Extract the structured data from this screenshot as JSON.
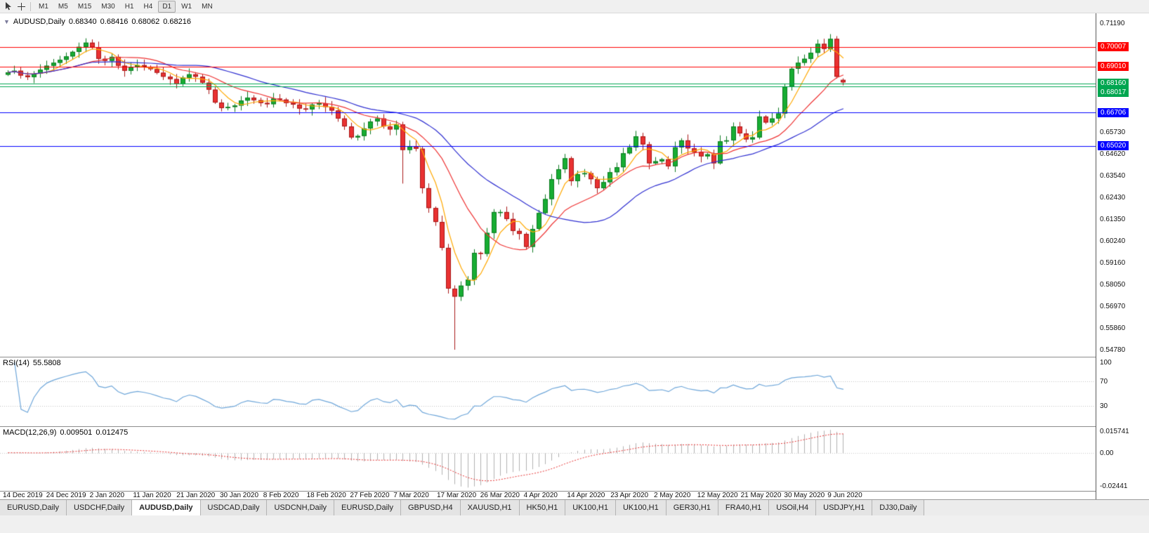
{
  "toolbar": {
    "timeframes": [
      "M1",
      "M5",
      "M15",
      "M30",
      "H1",
      "H4",
      "D1",
      "W1",
      "MN"
    ],
    "active_timeframe": "D1"
  },
  "chart": {
    "symbol_title": "AUDUSD,Daily",
    "ohlc": {
      "open": "0.68340",
      "high": "0.68416",
      "low": "0.68062",
      "close": "0.68216"
    },
    "price_axis": {
      "ticks": [
        {
          "label": "0.71190",
          "price": 0.7119
        },
        {
          "label": "0.65730",
          "price": 0.6573
        },
        {
          "label": "0.64620",
          "price": 0.6462
        },
        {
          "label": "0.63540",
          "price": 0.6354
        },
        {
          "label": "0.62430",
          "price": 0.6243
        },
        {
          "label": "0.61350",
          "price": 0.6135
        },
        {
          "label": "0.60240",
          "price": 0.6024
        },
        {
          "label": "0.59160",
          "price": 0.5916
        },
        {
          "label": "0.58050",
          "price": 0.5805
        },
        {
          "label": "0.56970",
          "price": 0.5697
        },
        {
          "label": "0.55860",
          "price": 0.5586
        },
        {
          "label": "0.54780",
          "price": 0.5478
        }
      ]
    },
    "date_axis": [
      "14 Dec 2019",
      "24 Dec 2019",
      "2 Jan 2020",
      "11 Jan 2020",
      "21 Jan 2020",
      "30 Jan 2020",
      "8 Feb 2020",
      "18 Feb 2020",
      "27 Feb 2020",
      "7 Mar 2020",
      "17 Mar 2020",
      "26 Mar 2020",
      "4 Apr 2020",
      "14 Apr 2020",
      "23 Apr 2020",
      "2 May 2020",
      "12 May 2020",
      "21 May 2020",
      "30 May 2020",
      "9 Jun 2020"
    ]
  },
  "rsi": {
    "name": "RSI(14)",
    "value": "55.5808",
    "period": 14,
    "axis": [
      {
        "label": "100",
        "value": 100
      },
      {
        "label": "70",
        "value": 70
      },
      {
        "label": "30",
        "value": 30
      }
    ],
    "levels": [
      70,
      30
    ]
  },
  "macd": {
    "name": "MACD(12,26,9)",
    "main": "0.009501",
    "signal": "0.012475",
    "params": [
      12,
      26,
      9
    ],
    "axis": [
      {
        "label": "0.015741",
        "value": 0.015741
      },
      {
        "label": "0.00",
        "value": 0.0
      },
      {
        "label": "-0.02441",
        "value": -0.02441
      }
    ]
  },
  "tabs": [
    {
      "label": "EURUSD,Daily",
      "active": false
    },
    {
      "label": "USDCHF,Daily",
      "active": false
    },
    {
      "label": "AUDUSD,Daily",
      "active": true
    },
    {
      "label": "USDCAD,Daily",
      "active": false
    },
    {
      "label": "USDCNH,Daily",
      "active": false
    },
    {
      "label": "EURUSD,Daily",
      "active": false
    },
    {
      "label": "GBPUSD,H4",
      "active": false
    },
    {
      "label": "XAUUSD,H1",
      "active": false
    },
    {
      "label": "HK50,H1",
      "active": false
    },
    {
      "label": "UK100,H1",
      "active": false
    },
    {
      "label": "UK100,H1",
      "active": false
    },
    {
      "label": "GER30,H1",
      "active": false
    },
    {
      "label": "FRA40,H1",
      "active": false
    },
    {
      "label": "USOil,H4",
      "active": false
    },
    {
      "label": "USDJPY,H1",
      "active": false
    },
    {
      "label": "DJ30,Daily",
      "active": false
    }
  ],
  "colors": {
    "candle_up": "#17ad33",
    "candle_up_border": "#0c7a20",
    "candle_down": "#e93232",
    "candle_down_border": "#a81717",
    "ma_fast": "#ffa800",
    "ma_mid": "#ee3333",
    "ma_slow": "#2f2fd0",
    "rsi_line": "#6ea6d9",
    "macd_hist": "#b0b0b0",
    "macd_signal": "#e53030",
    "line_red": "#ff0000",
    "line_green": "#00a650",
    "line_blue": "#0000ff"
  },
  "chart_data": {
    "type": "candlestick",
    "symbol": "AUDUSD",
    "timeframe": "Daily",
    "price_range": {
      "max": 0.7119,
      "min": 0.5478
    },
    "first_open": 0.686,
    "closes": [
      0.6872,
      0.688,
      0.6856,
      0.6848,
      0.6865,
      0.6885,
      0.6905,
      0.692,
      0.6935,
      0.6952,
      0.6975,
      0.7,
      0.7021,
      0.6998,
      0.694,
      0.693,
      0.695,
      0.6905,
      0.688,
      0.6898,
      0.6908,
      0.69,
      0.6888,
      0.687,
      0.685,
      0.6838,
      0.6812,
      0.6845,
      0.6862,
      0.685,
      0.682,
      0.6785,
      0.672,
      0.6692,
      0.6698,
      0.6705,
      0.673,
      0.6745,
      0.6732,
      0.6718,
      0.6712,
      0.674,
      0.6735,
      0.6718,
      0.671,
      0.669,
      0.6686,
      0.671,
      0.6716,
      0.6698,
      0.668,
      0.664,
      0.66,
      0.6545,
      0.6552,
      0.659,
      0.6625,
      0.664,
      0.66,
      0.6585,
      0.661,
      0.6482,
      0.65,
      0.6488,
      0.629,
      0.619,
      0.612,
      0.599,
      0.5785,
      0.5745,
      0.58,
      0.583,
      0.5965,
      0.596,
      0.6065,
      0.617,
      0.617,
      0.6135,
      0.6075,
      0.606,
      0.5995,
      0.6085,
      0.6165,
      0.6235,
      0.6335,
      0.6385,
      0.644,
      0.6325,
      0.636,
      0.6365,
      0.6335,
      0.629,
      0.632,
      0.637,
      0.6395,
      0.6465,
      0.6495,
      0.655,
      0.651,
      0.6415,
      0.6425,
      0.6435,
      0.64,
      0.6495,
      0.653,
      0.649,
      0.647,
      0.645,
      0.646,
      0.6415,
      0.6525,
      0.653,
      0.66,
      0.6565,
      0.6535,
      0.6545,
      0.665,
      0.662,
      0.664,
      0.6665,
      0.68,
      0.689,
      0.692,
      0.694,
      0.697,
      0.7015,
      0.699,
      0.704,
      0.685,
      0.68216
    ],
    "wick_overrides": [
      {
        "index": 61,
        "low": 0.6313
      },
      {
        "index": 69,
        "low": 0.5478
      },
      {
        "index": 127,
        "high": 0.7064
      },
      {
        "index": 129,
        "open": 0.6834,
        "high": 0.68416,
        "low": 0.68062
      }
    ],
    "moving_averages": [
      {
        "name": "fast",
        "period": 5,
        "color": "#ffa800"
      },
      {
        "name": "mid",
        "period": 13,
        "color": "#ee3333"
      },
      {
        "name": "slow",
        "period": 26,
        "color": "#2f2fd0"
      }
    ],
    "horizontal_lines": [
      {
        "label": "0.70007",
        "price": 0.70007,
        "color": "#ff0000"
      },
      {
        "label": "0.69010",
        "price": 0.6901,
        "color": "#ff0000"
      },
      {
        "label": "0.68160",
        "price": 0.6816,
        "color": "#00a650"
      },
      {
        "label": "0.68017",
        "price": 0.68017,
        "color": "#00a650"
      },
      {
        "label": "0.66706",
        "price": 0.66706,
        "color": "#0000ff"
      },
      {
        "label": "0.65020",
        "price": 0.6502,
        "color": "#0000ff"
      }
    ]
  }
}
